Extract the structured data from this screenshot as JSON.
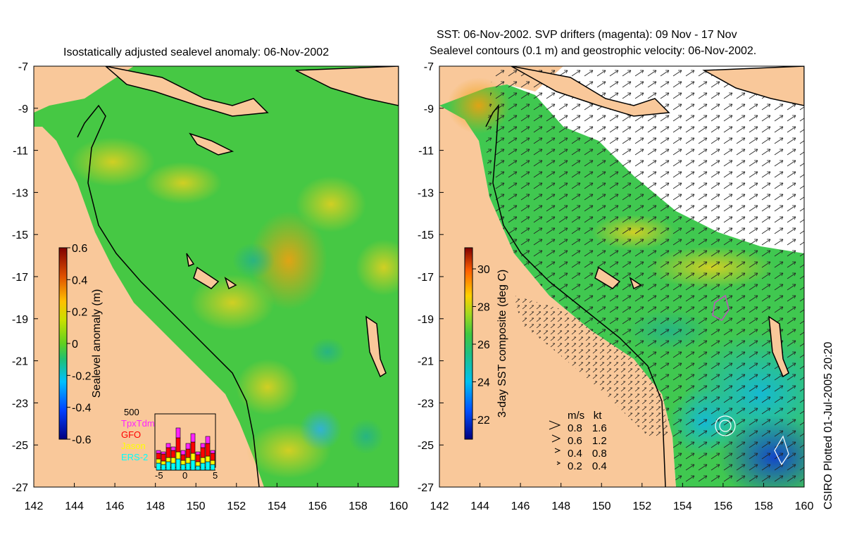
{
  "left_panel": {
    "title": "Isostatically adjusted sealevel anomaly: 06-Nov-2002",
    "colorbar": {
      "label": "Sealevel anomaly (m)",
      "ticks": [
        "0.6",
        "0.4",
        "0.2",
        "0",
        "-0.2",
        "-0.4",
        "-0.6"
      ]
    },
    "satellite_histogram": {
      "ymax_label": "500",
      "legend": [
        {
          "name": "TpxTdm",
          "color": "#ff22ff"
        },
        {
          "name": "GFO",
          "color": "#ff0000"
        },
        {
          "name": "Jason",
          "color": "#ffff00"
        },
        {
          "name": "ERS-2",
          "color": "#00ffff"
        }
      ],
      "x_ticks": [
        "-5",
        "0",
        "5"
      ]
    }
  },
  "right_panel": {
    "title_line1": "SST: 06-Nov-2002. SVP drifters (magenta): 09 Nov - 17 Nov",
    "title_line2": "Sealevel contours (0.1 m) and geostrophic velocity: 06-Nov-2002.",
    "colorbar": {
      "label": "3-day SST composite (deg C)",
      "ticks": [
        "30",
        "28",
        "26",
        "24",
        "22"
      ]
    },
    "velocity_legend": {
      "header_ms": "m/s",
      "header_kt": "kt",
      "rows": [
        {
          "ms": "0.8",
          "kt": "1.6"
        },
        {
          "ms": "0.6",
          "kt": "1.2"
        },
        {
          "ms": "0.4",
          "kt": "0.8"
        },
        {
          "ms": "0.2",
          "kt": "0.4"
        }
      ]
    }
  },
  "axes": {
    "lat_ticks": [
      "-7",
      "-9",
      "-11",
      "-13",
      "-15",
      "-17",
      "-19",
      "-21",
      "-23",
      "-25",
      "-27"
    ],
    "lon_ticks": [
      "142",
      "144",
      "146",
      "148",
      "150",
      "152",
      "154",
      "156",
      "158",
      "160"
    ]
  },
  "credit": "CSIRO Plotted 01-Jul-2005 20:20",
  "colors": {
    "land": "#f9c89a",
    "sea_green": "#46c844",
    "coast": "#000000"
  }
}
